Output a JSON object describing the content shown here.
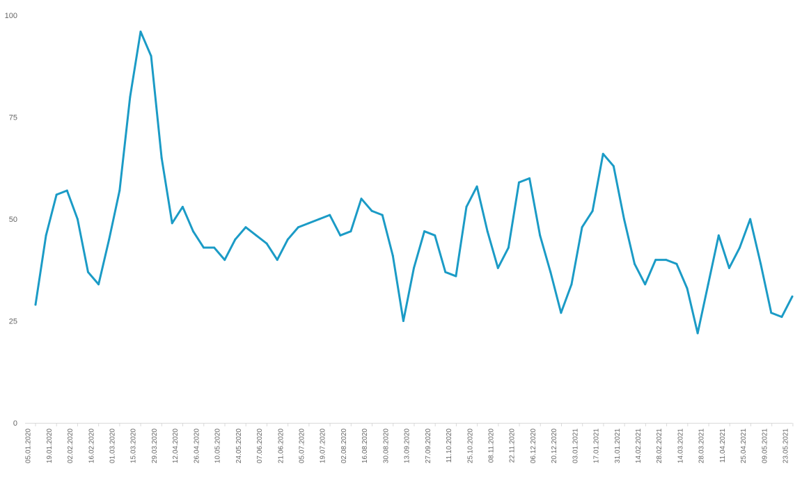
{
  "chart_data": {
    "type": "line",
    "title": "",
    "xlabel": "",
    "ylabel": "",
    "ylim": [
      0,
      100
    ],
    "yticks": [
      0,
      25,
      50,
      75,
      100
    ],
    "grid": false,
    "legend": "none",
    "line_color": "#1b9bc6",
    "axis_color": "#d9d9d9",
    "x_tick_labels": [
      "05.01.2020",
      "19.01.2020",
      "02.02.2020",
      "16.02.2020",
      "01.03.2020",
      "15.03.2020",
      "29.03.2020",
      "12.04.2020",
      "26.04.2020",
      "10.05.2020",
      "24.05.2020",
      "07.06.2020",
      "21.06.2020",
      "05.07.2020",
      "19.07.2020",
      "02.08.2020",
      "16.08.2020",
      "30.08.2020",
      "13.09.2020",
      "27.09.2020",
      "11.10.2020",
      "25.10.2020",
      "08.11.2020",
      "22.11.2020",
      "06.12.2020",
      "20.12.2020",
      "03.01.2021",
      "17.01.2021",
      "31.01.2021",
      "14.02.2021",
      "28.02.2021",
      "14.03.2021",
      "28.03.2021",
      "11.04.2021",
      "25.04.2021",
      "09.05.2021",
      "23.05.2021"
    ],
    "series": [
      {
        "values": [
          29,
          46,
          56,
          57,
          50,
          37,
          34,
          45,
          57,
          80,
          96,
          90,
          65,
          49,
          53,
          47,
          43,
          43,
          40,
          45,
          48,
          46,
          44,
          40,
          45,
          48,
          49,
          50,
          51,
          46,
          47,
          55,
          52,
          51,
          41,
          25,
          38,
          47,
          46,
          37,
          36,
          53,
          58,
          47,
          38,
          43,
          59,
          60,
          46,
          37,
          27,
          34,
          48,
          52,
          66,
          63,
          50,
          39,
          34,
          40,
          40,
          39,
          33,
          22,
          34,
          46,
          38,
          43,
          50,
          39,
          27,
          26,
          31
        ]
      }
    ]
  }
}
